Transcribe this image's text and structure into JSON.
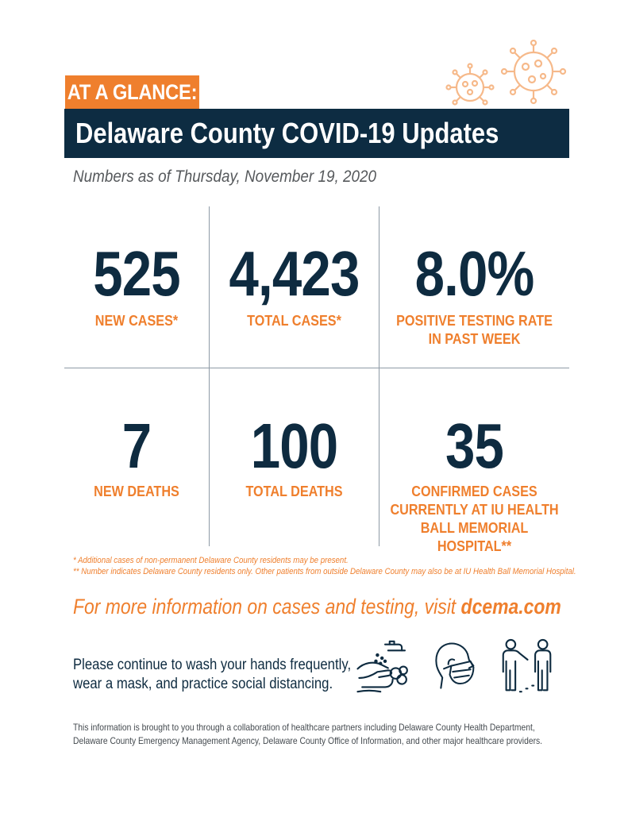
{
  "header": {
    "tag": "AT A GLANCE:",
    "title": "Delaware County COVID-19 Updates",
    "as_of": "Numbers as of Thursday, November 19, 2020"
  },
  "stats": [
    {
      "value": "525",
      "label": "NEW CASES*"
    },
    {
      "value": "4,423",
      "label": "TOTAL CASES*"
    },
    {
      "value": "8.0%",
      "label": "POSITIVE TESTING RATE\nIN PAST WEEK"
    },
    {
      "value": "7",
      "label": "NEW DEATHS"
    },
    {
      "value": "100",
      "label": "TOTAL DEATHS"
    },
    {
      "value": "35",
      "label": "CONFIRMED CASES\nCURRENTLY AT IU HEALTH\nBALL MEMORIAL HOSPITAL**"
    }
  ],
  "footnotes": [
    "*   Additional cases of non-permanent Delaware County residents may be present.",
    "** Number indicates Delaware County residents only. Other patients from outside Delaware County may also be at IU Health Ball Memorial Hospital."
  ],
  "more_info": {
    "text": "For more information on cases and testing, visit ",
    "link": "dcema.com"
  },
  "reminder": "Please continue to wash your hands frequently,\nwear a mask, and practice social distancing.",
  "icons": [
    "hand-washing-icon",
    "face-mask-icon",
    "social-distancing-icon",
    "virus-icon"
  ],
  "colors": {
    "navy": "#0d2c42",
    "orange": "#ef7f2d"
  },
  "footer": "This information is brought to you through a collaboration of healthcare partners including Delaware County Health Department,\nDelaware County Emergency Management Agency, Delaware County Office of Information, and other major healthcare providers."
}
